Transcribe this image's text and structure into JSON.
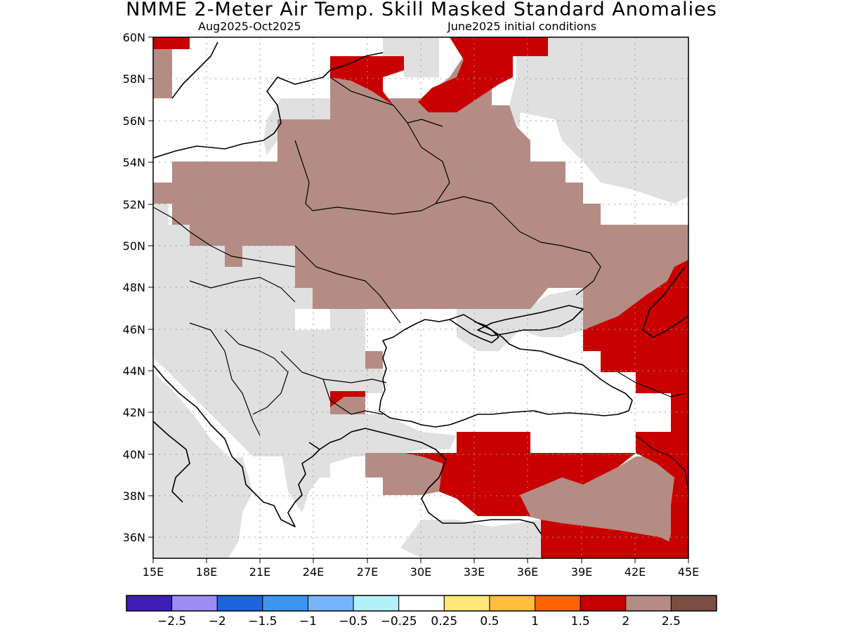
{
  "title": "NMME 2-Meter Air Temp. Skill Masked Standard Anomalies",
  "subtitle_left": "Aug2025-Oct2025",
  "subtitle_right": "June2025 initial conditions",
  "map": {
    "lon_range": [
      15,
      45
    ],
    "lat_range": [
      35,
      60
    ],
    "lon_ticks": [
      "15E",
      "18E",
      "21E",
      "24E",
      "27E",
      "30E",
      "33E",
      "36E",
      "39E",
      "42E",
      "45E"
    ],
    "lat_ticks": [
      "36N",
      "38N",
      "40N",
      "42N",
      "44N",
      "46N",
      "48N",
      "50N",
      "52N",
      "54N",
      "56N",
      "58N",
      "60N"
    ],
    "category_colors": {
      "masked": "#e0e0e0",
      "anom_2_2.5": "#b48c84",
      "anom_1.5_2": "#c80000"
    }
  },
  "colorbar": {
    "colors": [
      "#3c1eb4",
      "#9c8cf4",
      "#1e64dc",
      "#3c96f0",
      "#78b4fa",
      "#b4f0fa",
      "#ffffff",
      "#ffe678",
      "#ffbe3c",
      "#ff6400",
      "#c80000",
      "#b48c84",
      "#7a4e42"
    ],
    "labels": [
      "-2.5",
      "-2",
      "-1.5",
      "-1",
      "-0.5",
      "-0.25",
      "0.25",
      "0.5",
      "1",
      "1.5",
      "2",
      "2.5"
    ]
  }
}
